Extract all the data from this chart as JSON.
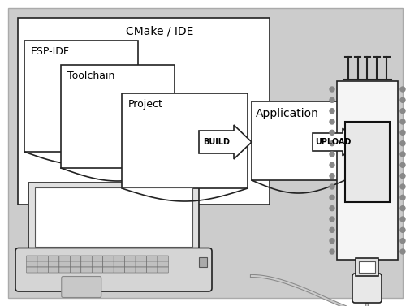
{
  "bg_outer": "#ffffff",
  "bg_gray": "#cccccc",
  "cmake_label": "CMake / IDE",
  "esp_idf_label": "ESP-IDF",
  "toolchain_label": "Toolchain",
  "project_label": "Project",
  "application_label": "Application",
  "build_label": "BUILD",
  "upload_label": "UPLOAD",
  "outline_color": "#222222",
  "text_color": "#000000",
  "font_size_title": 10,
  "font_size_label": 9,
  "font_size_arrow": 7
}
